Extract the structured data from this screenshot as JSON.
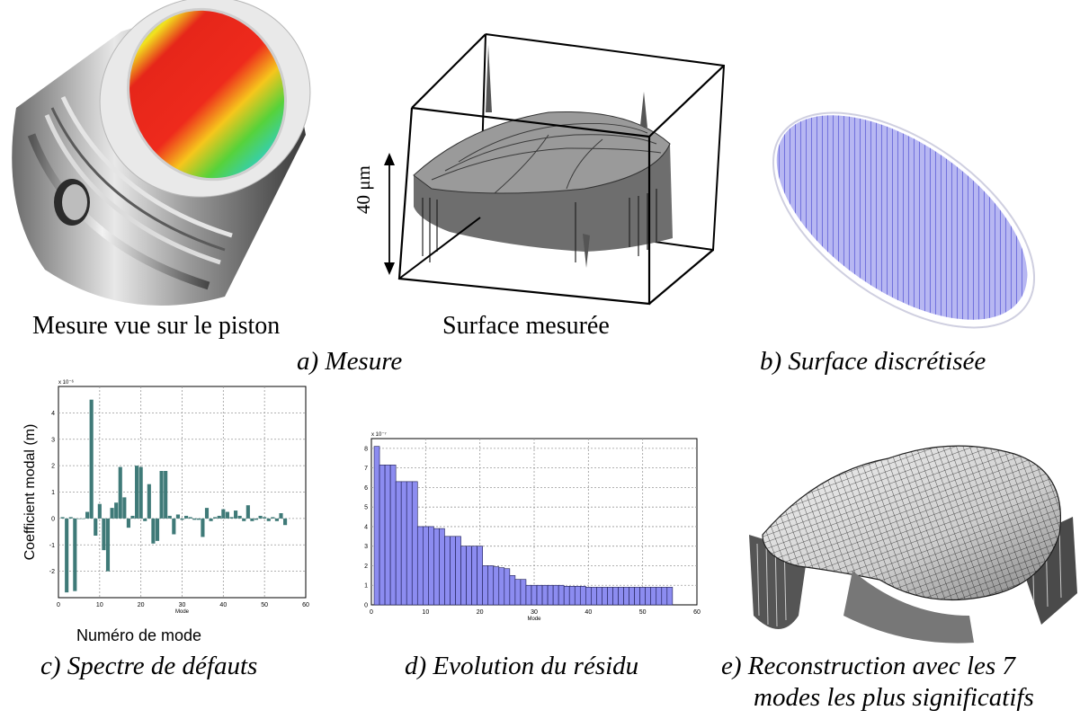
{
  "captions": {
    "piston": "Mesure vue sur le piston",
    "surface": "Surface mesurée",
    "scale": "40 μm",
    "a": "a) Mesure",
    "b": "b) Surface discrétisée",
    "c": "c) Spectre de défauts",
    "d": "d) Evolution du résidu",
    "e_line1": "e) Reconstruction avec les 7",
    "e_line2": "modes les plus significatifs"
  },
  "colors": {
    "spectrum_bar": "#3f7a78",
    "residual_bar": "#8c8cf0",
    "discretized": "#8f8fe6"
  },
  "chart_data": [
    {
      "type": "bar",
      "title": "",
      "xlabel": "Mode",
      "ylabel": "Coefficient modal (m)",
      "outer_xlabel": "Numéro de mode",
      "exponent_label": "x 10⁻⁶",
      "xlim": [
        0,
        60
      ],
      "ylim": [
        -3,
        5
      ],
      "xticks": [
        0,
        10,
        20,
        30,
        40,
        50,
        60
      ],
      "yticks": [
        -2,
        -1,
        0,
        1,
        2,
        3,
        4
      ],
      "grid": true,
      "x": [
        1,
        2,
        3,
        4,
        5,
        6,
        7,
        8,
        9,
        10,
        11,
        12,
        13,
        14,
        15,
        16,
        17,
        18,
        19,
        20,
        21,
        22,
        23,
        24,
        25,
        26,
        27,
        28,
        29,
        30,
        31,
        32,
        33,
        34,
        35,
        36,
        37,
        38,
        39,
        40,
        41,
        42,
        43,
        44,
        45,
        46,
        47,
        48,
        49,
        50,
        51,
        52,
        53,
        54,
        55
      ],
      "values": [
        0.05,
        -2.8,
        0.05,
        -2.75,
        0,
        0,
        0.25,
        4.5,
        -0.65,
        0.55,
        -1.2,
        -2.0,
        0.4,
        0.6,
        1.95,
        0.8,
        -0.35,
        0.1,
        2.0,
        1.95,
        -0.1,
        1.3,
        -0.95,
        -0.85,
        1.8,
        1.8,
        0.1,
        -0.6,
        0.15,
        -0.05,
        0.1,
        0.05,
        -0.05,
        -0.05,
        -0.7,
        0.4,
        -0.1,
        0.05,
        0.1,
        0.35,
        0.25,
        0.05,
        0.3,
        0.1,
        -0.1,
        0.5,
        -0.1,
        -0.05,
        0.1,
        0.05,
        -0.1,
        0.05,
        -0.1,
        0.2,
        -0.25
      ]
    },
    {
      "type": "bar",
      "title": "",
      "xlabel": "Mode",
      "ylabel": "",
      "exponent_label": "x 10⁻⁷",
      "xlim": [
        0,
        60
      ],
      "ylim": [
        0,
        8.5
      ],
      "xticks": [
        0,
        10,
        20,
        30,
        40,
        50,
        60
      ],
      "yticks": [
        0,
        1,
        2,
        3,
        4,
        5,
        6,
        7,
        8
      ],
      "grid": true,
      "x": [
        1,
        2,
        3,
        4,
        5,
        6,
        7,
        8,
        9,
        10,
        11,
        12,
        13,
        14,
        15,
        16,
        17,
        18,
        19,
        20,
        21,
        22,
        23,
        24,
        25,
        26,
        27,
        28,
        29,
        30,
        31,
        32,
        33,
        34,
        35,
        36,
        37,
        38,
        39,
        40,
        41,
        42,
        43,
        44,
        45,
        46,
        47,
        48,
        49,
        50,
        51,
        52,
        53,
        54,
        55
      ],
      "values": [
        8.1,
        7.15,
        7.15,
        7.15,
        6.3,
        6.3,
        6.3,
        6.3,
        4.0,
        4.0,
        4.0,
        3.9,
        3.9,
        3.5,
        3.5,
        3.5,
        3.0,
        3.0,
        3.0,
        3.0,
        2.0,
        2.0,
        1.95,
        1.9,
        1.85,
        1.5,
        1.3,
        1.3,
        1.0,
        1.0,
        1.0,
        1.0,
        1.0,
        1.0,
        1.0,
        0.95,
        0.95,
        0.95,
        0.95,
        0.9,
        0.9,
        0.9,
        0.9,
        0.9,
        0.9,
        0.9,
        0.9,
        0.9,
        0.9,
        0.9,
        0.9,
        0.9,
        0.9,
        0.9,
        0.9
      ]
    }
  ]
}
